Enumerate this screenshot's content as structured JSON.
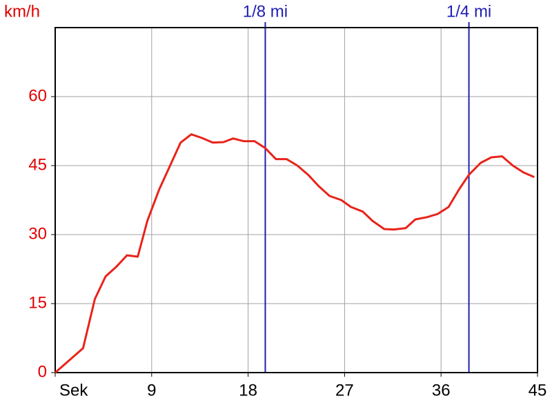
{
  "chart_data": {
    "type": "line",
    "y_label": "km/h",
    "xlim": [
      0,
      45
    ],
    "xticks": [
      {
        "value": 0,
        "label": "Sek"
      },
      9,
      18,
      27,
      36,
      45
    ],
    "ylim": [
      0,
      75
    ],
    "yticks": [
      0,
      15,
      30,
      45,
      60
    ],
    "grid": true,
    "x": [
      0,
      2.6,
      3.7,
      4.7,
      5.7,
      6.7,
      7.7,
      8.6,
      9.7,
      11.7,
      12.7,
      13.7,
      14.7,
      15.7,
      16.6,
      17.6,
      18.6,
      19.6,
      20.6,
      21.6,
      22.6,
      23.6,
      24.6,
      25.6,
      26.7,
      27.6,
      28.7,
      29.6,
      30.7,
      31.6,
      32.7,
      33.6,
      34.7,
      35.7,
      36.7,
      37.7,
      38.6,
      39.7,
      40.7,
      41.7,
      42.7,
      43.7,
      44.7
    ],
    "series": [
      {
        "color": "#e8231a",
        "values": [
          0,
          5.3,
          16,
          20.9,
          23,
          25.5,
          25.2,
          33,
          39.8,
          50,
          51.8,
          51,
          50,
          50.1,
          50.9,
          50.3,
          50.3,
          48.8,
          46.4,
          46.4,
          45,
          43,
          40.5,
          38.4,
          37.5,
          36,
          35,
          33,
          31.2,
          31.1,
          31.4,
          33.3,
          33.8,
          34.5,
          36,
          39.9,
          43,
          45.6,
          46.8,
          47,
          45,
          43.5,
          42.5
        ]
      }
    ],
    "markers": [
      {
        "label": "1/8 mi",
        "x": 19.6,
        "color": "#1e1eb4"
      },
      {
        "label": "1/4 mi",
        "x": 38.6,
        "color": "#1e1eb4"
      }
    ]
  }
}
